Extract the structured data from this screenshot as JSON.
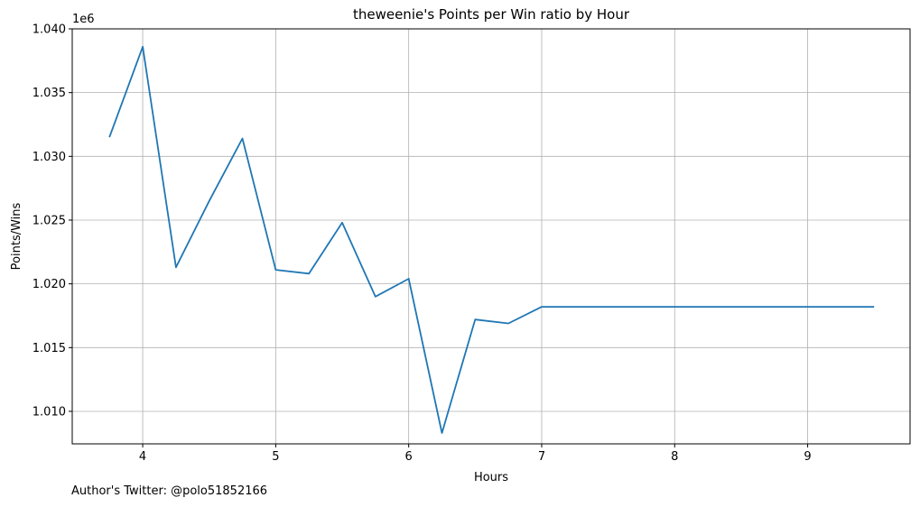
{
  "chart_data": {
    "type": "line",
    "title": "theweenie's Points per Win ratio by Hour",
    "xlabel": "Hours",
    "ylabel": "Points/Wins",
    "y_offset_label": "1e6",
    "xlim": [
      3.47,
      9.77
    ],
    "ylim": [
      1.00745,
      1.04
    ],
    "x_ticks": [
      4,
      5,
      6,
      7,
      8,
      9
    ],
    "y_ticks": [
      1.01,
      1.015,
      1.02,
      1.025,
      1.03,
      1.035,
      1.04
    ],
    "x_tick_labels": [
      "4",
      "5",
      "6",
      "7",
      "8",
      "9"
    ],
    "y_tick_labels": [
      "1.010",
      "1.015",
      "1.020",
      "1.025",
      "1.030",
      "1.035",
      "1.040"
    ],
    "grid": true,
    "series": [
      {
        "color": "#1f77b4",
        "x": [
          3.75,
          4.0,
          4.25,
          4.5,
          4.75,
          5.0,
          5.25,
          5.5,
          5.75,
          6.0,
          6.25,
          6.5,
          6.75,
          7.0,
          7.25,
          7.5,
          7.75,
          8.0,
          8.25,
          8.5,
          8.75,
          9.0,
          9.25,
          9.5
        ],
        "y": [
          1.0315,
          1.0386,
          1.0213,
          1.0265,
          1.0314,
          1.0211,
          1.0208,
          1.0248,
          1.019,
          1.0204,
          1.0083,
          1.0172,
          1.0169,
          1.0182,
          1.0182,
          1.0182,
          1.0182,
          1.0182,
          1.0182,
          1.0182,
          1.0182,
          1.0182,
          1.0182,
          1.0182
        ]
      }
    ]
  },
  "footer": {
    "author_note": "Author's Twitter: @polo51852166"
  }
}
